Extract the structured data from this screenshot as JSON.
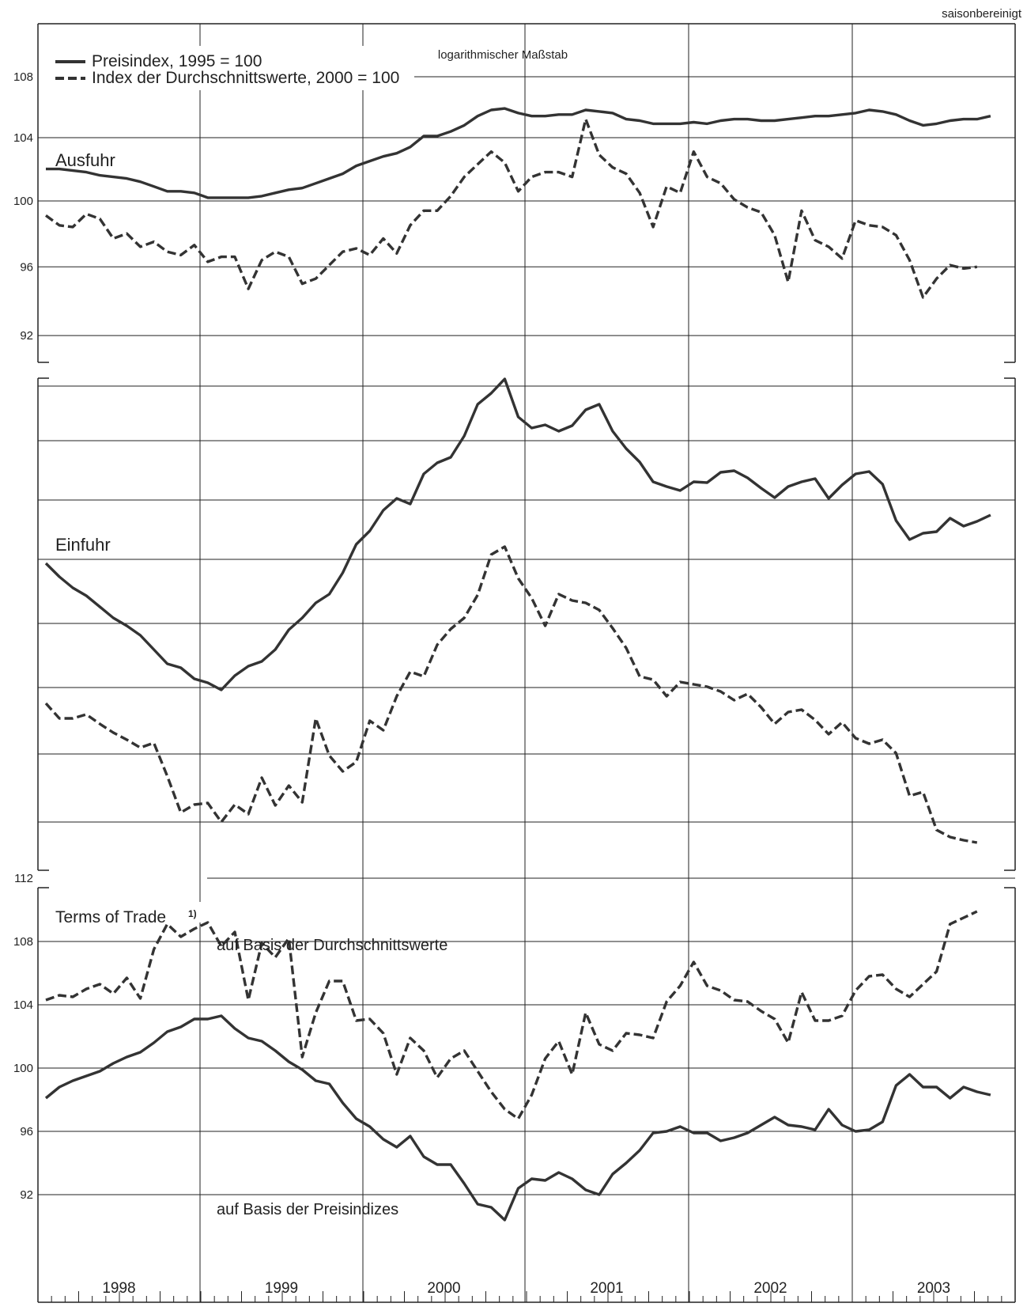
{
  "header": {
    "note": "saisonbereinigt",
    "scale_note": "logarithmischer Maßstab"
  },
  "legend": {
    "solid": "Preisindex, 1995 = 100",
    "dashed": "Index der Durchschnittswerte, 2000 = 100"
  },
  "years": [
    "1998",
    "1999",
    "2000",
    "2001",
    "2002",
    "2003"
  ],
  "colors": {
    "line": "#333333",
    "grid": "#222222"
  },
  "chart_data": [
    {
      "type": "line",
      "title": "Ausfuhr",
      "y_scale": "log",
      "ylim": [
        90.5,
        111
      ],
      "yticks": [
        92,
        96,
        100,
        104,
        108
      ],
      "x_start": "1998-01",
      "x_end": "2003-12",
      "series": [
        {
          "name": "Preisindex, 1995 = 100",
          "style": "solid",
          "values": [
            102.0,
            102.0,
            101.9,
            101.8,
            101.6,
            101.5,
            101.4,
            101.2,
            100.9,
            100.6,
            100.6,
            100.5,
            100.2,
            100.2,
            100.2,
            100.2,
            100.3,
            100.5,
            100.7,
            100.8,
            101.1,
            101.4,
            101.7,
            102.2,
            102.5,
            102.8,
            103.0,
            103.4,
            104.1,
            104.1,
            104.4,
            104.8,
            105.4,
            105.8,
            105.9,
            105.6,
            105.4,
            105.4,
            105.5,
            105.5,
            105.8,
            105.7,
            105.6,
            105.2,
            105.1,
            104.9,
            104.9,
            104.9,
            105.0,
            104.9,
            105.1,
            105.2,
            105.2,
            105.1,
            105.1,
            105.2,
            105.3,
            105.4,
            105.4,
            105.5,
            105.6,
            105.8,
            105.7,
            105.5,
            105.1,
            104.8,
            104.9,
            105.1,
            105.2,
            105.2,
            105.4
          ]
        },
        {
          "name": "Index der Durchschnittswerte, 2000 = 100",
          "style": "dashed",
          "values": [
            99.1,
            98.5,
            98.4,
            99.2,
            98.9,
            97.7,
            98.0,
            97.2,
            97.5,
            96.9,
            96.7,
            97.3,
            96.3,
            96.6,
            96.6,
            94.7,
            96.4,
            96.9,
            96.6,
            95.0,
            95.3,
            96.1,
            96.9,
            97.1,
            96.7,
            97.7,
            96.8,
            98.5,
            99.4,
            99.4,
            100.3,
            101.5,
            102.3,
            103.1,
            102.4,
            100.6,
            101.5,
            101.8,
            101.8,
            101.5,
            105.2,
            102.9,
            102.1,
            101.7,
            100.5,
            98.4,
            100.9,
            100.5,
            103.1,
            101.5,
            101.1,
            100.1,
            99.6,
            99.3,
            97.9,
            95.1,
            99.4,
            97.6,
            97.2,
            96.5,
            98.8,
            98.5,
            98.4,
            97.9,
            96.4,
            94.2,
            95.3,
            96.1,
            95.9,
            96.0
          ]
        }
      ]
    },
    {
      "type": "line",
      "title": "Einfuhr",
      "y_scale": "log",
      "x_start": "1998-01",
      "x_end": "2003-12",
      "series": [
        {
          "name": "Preisindex, 1995 = 100",
          "style": "solid"
        },
        {
          "name": "Index der Durchschnittswerte, 2000 = 100",
          "style": "dashed"
        }
      ]
    },
    {
      "type": "line",
      "title": "Terms of Trade 1)",
      "ylim": [
        88.5,
        113
      ],
      "yticks": [
        92,
        96,
        100,
        104,
        108,
        112
      ],
      "x_start": "1998-01",
      "x_end": "2003-12",
      "series": [
        {
          "name": "auf Basis der Durchschnittswerte",
          "style": "dashed",
          "values": [
            104.3,
            104.6,
            104.5,
            105.0,
            105.3,
            104.7,
            105.7,
            104.4,
            107.5,
            109.1,
            108.3,
            108.8,
            109.2,
            107.7,
            108.6,
            104.3,
            107.9,
            107.0,
            108.2,
            100.7,
            103.5,
            105.5,
            105.5,
            103.0,
            103.1,
            102.2,
            99.6,
            101.9,
            101.1,
            99.4,
            100.6,
            101.1,
            99.8,
            98.5,
            97.4,
            96.8,
            98.3,
            100.6,
            101.7,
            99.6,
            103.5,
            101.5,
            101.1,
            102.2,
            102.1,
            101.9,
            104.2,
            105.2,
            106.7,
            105.2,
            104.9,
            104.3,
            104.2,
            103.6,
            103.1,
            101.6,
            104.8,
            103.0,
            103.0,
            103.3,
            104.9,
            105.8,
            105.9,
            105.0,
            104.5,
            105.3,
            106.1,
            109.1,
            109.5,
            109.9
          ]
        },
        {
          "name": "auf Basis der Preisindizes",
          "style": "solid",
          "values": [
            98.1,
            98.8,
            99.2,
            99.5,
            99.8,
            100.3,
            100.7,
            101.0,
            101.6,
            102.3,
            102.6,
            103.1,
            103.1,
            103.3,
            102.5,
            101.9,
            101.7,
            101.1,
            100.4,
            99.9,
            99.2,
            99.0,
            97.8,
            96.8,
            96.3,
            95.5,
            95.0,
            95.7,
            94.4,
            93.9,
            93.9,
            92.7,
            91.4,
            91.2,
            90.4,
            92.4,
            93.0,
            92.9,
            93.4,
            93.0,
            92.3,
            92.0,
            93.3,
            94.0,
            94.8,
            95.9,
            96.0,
            96.3,
            95.9,
            95.9,
            95.4,
            95.6,
            95.9,
            96.4,
            96.9,
            96.4,
            96.3,
            96.1,
            97.4,
            96.4,
            96.0,
            96.1,
            96.6,
            98.9,
            99.6,
            98.8,
            98.8,
            98.1,
            98.8,
            98.5,
            98.3
          ]
        }
      ]
    }
  ],
  "annotations": {
    "panel1_label": "Ausfuhr",
    "panel2_label": "Einfuhr",
    "panel3_label": "Terms of Trade",
    "panel3_footnote": "1)",
    "tot_avg_label": "auf Basis der Durchschnittswerte",
    "tot_price_label": "auf Basis der Preisindizes"
  }
}
